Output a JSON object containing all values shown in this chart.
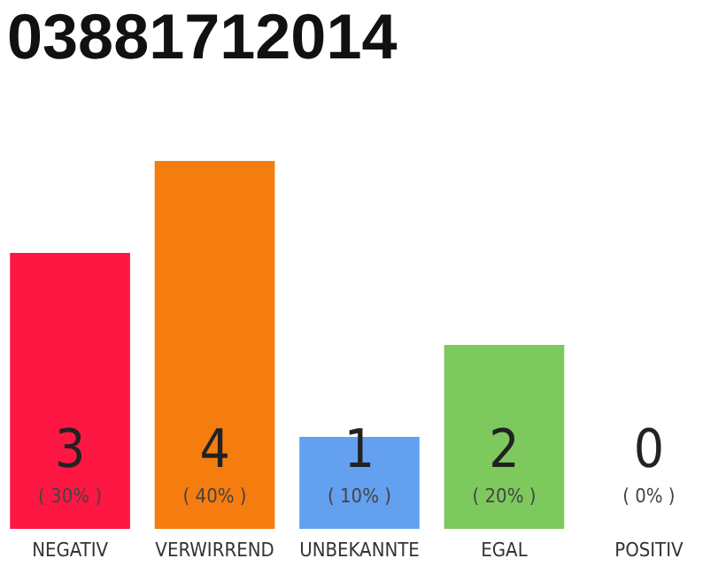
{
  "chart_data": {
    "type": "bar",
    "title": "03881712014",
    "categories": [
      "NEGATIV",
      "VERWIRREND",
      "UNBEKANNTE",
      "EGAL",
      "POSITIV"
    ],
    "values": [
      3,
      4,
      1,
      2,
      0
    ],
    "colors": [
      "#ff1744",
      "#f57c0e",
      "#64a0f0",
      "#7dc95e",
      "#bdbdbd"
    ],
    "ylim": [
      0,
      4
    ],
    "data_labels": true,
    "tick_labels": "x",
    "annotations": [
      "( 30% )",
      "( 40% )",
      "( 10% )",
      "( 20% )",
      "( 0% )"
    ]
  }
}
